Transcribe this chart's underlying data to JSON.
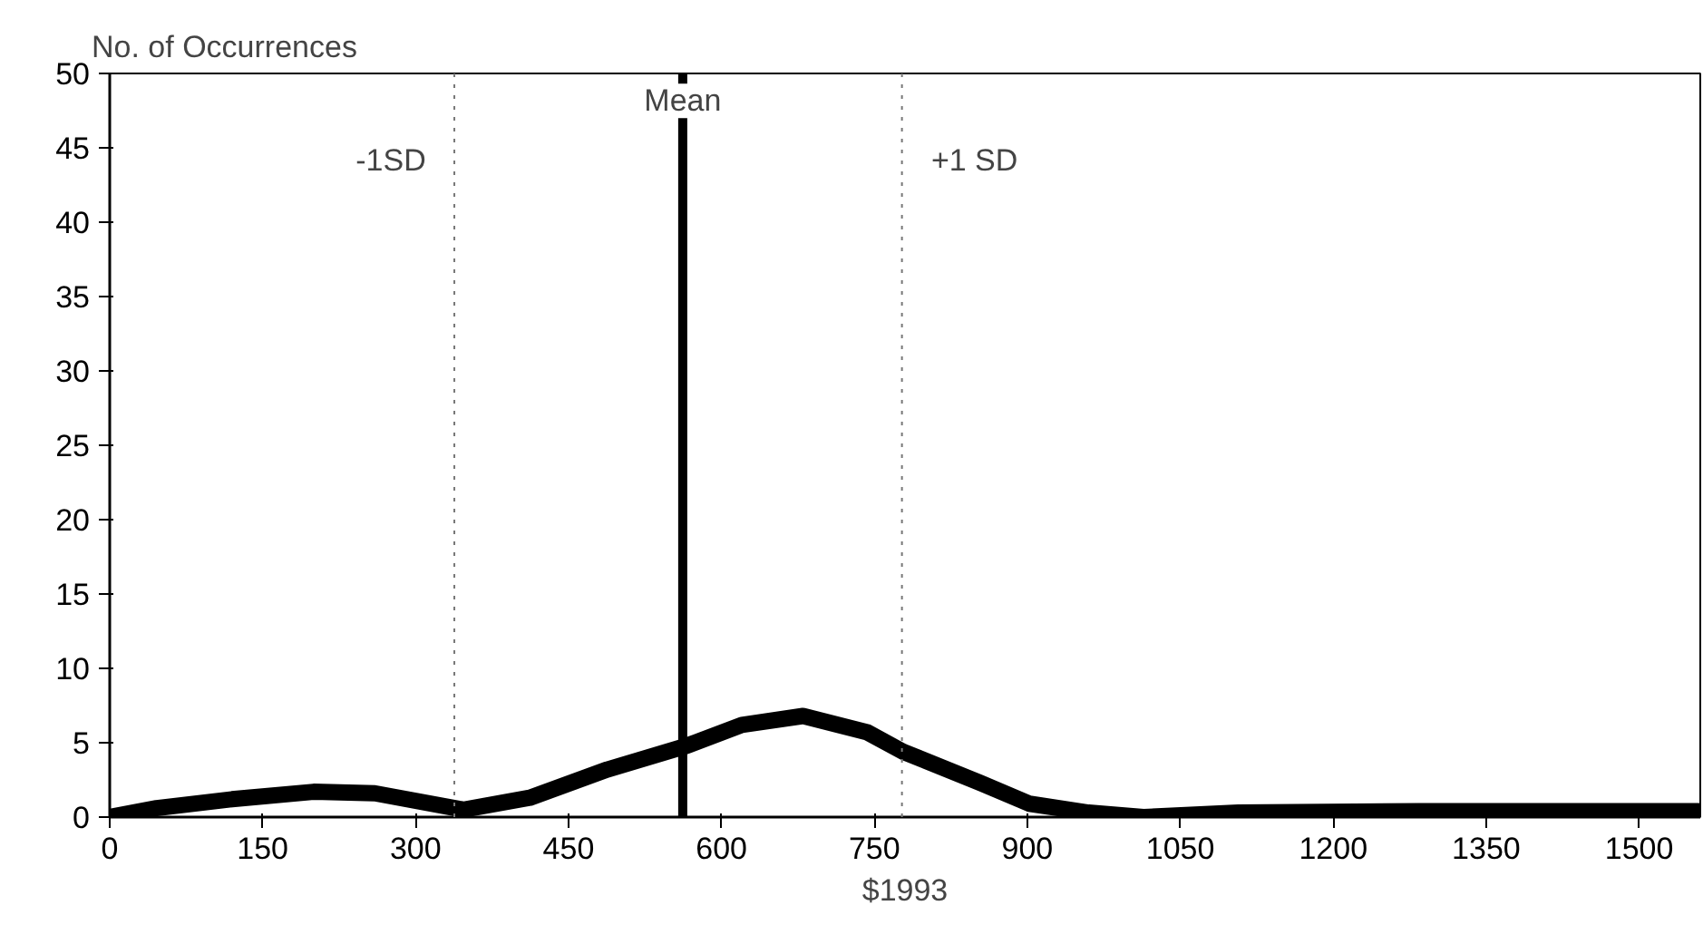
{
  "chart_data": {
    "type": "line",
    "xlabel": "$1993",
    "ylabel": "No. of Occurrences",
    "x": [
      0,
      46,
      120,
      200,
      260,
      347,
      412,
      488,
      566,
      620,
      680,
      743,
      778,
      854,
      902,
      960,
      1014,
      1107,
      1284,
      1400,
      1558
    ],
    "series": [
      {
        "color": "#000000",
        "values": [
          0,
          0.6,
          1.2,
          1.7,
          1.6,
          0.5,
          1.3,
          3.2,
          4.8,
          6.2,
          6.8,
          5.7,
          4.4,
          2.3,
          0.9,
          0.3,
          0,
          0.3,
          0.4,
          0.4,
          0.4
        ]
      }
    ],
    "xlim": [
      0,
      1560
    ],
    "xticks": [
      0,
      150,
      300,
      450,
      600,
      750,
      900,
      1050,
      1200,
      1350,
      1500
    ],
    "ylim": [
      0,
      50
    ],
    "yticks": [
      0,
      5,
      10,
      15,
      20,
      25,
      30,
      35,
      40,
      45,
      50
    ],
    "ref_lines": [
      {
        "axis": "x",
        "value": 338,
        "label": "-1SD",
        "line_style": "dotted",
        "color": "#777777"
      },
      {
        "axis": "x",
        "value": 562,
        "label": "Mean",
        "line_style": "solid",
        "color": "#000000"
      },
      {
        "axis": "x",
        "value": 777,
        "label": "+1 SD",
        "line_style": "dotted",
        "color": "#777777"
      }
    ],
    "grid": false,
    "marker": "none",
    "line_style": "solid"
  }
}
